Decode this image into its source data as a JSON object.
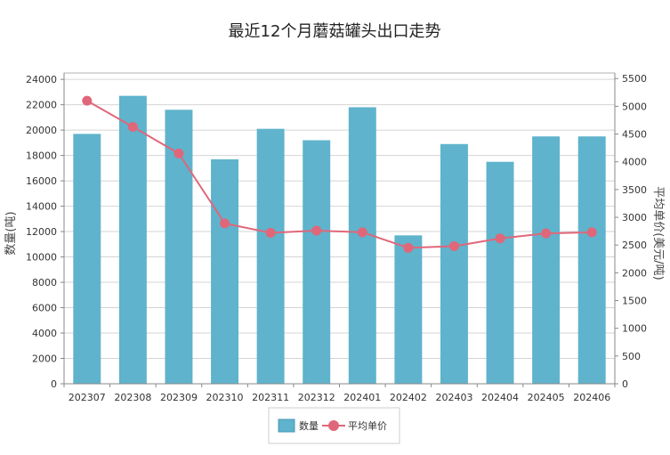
{
  "chart_data": {
    "type": "bar",
    "title": "最近12个月蘑菇罐头出口走势",
    "categories": [
      "202307",
      "202308",
      "202309",
      "202310",
      "202311",
      "202312",
      "202401",
      "202402",
      "202403",
      "202404",
      "202405",
      "202406"
    ],
    "ylabel": "数量(吨)",
    "y2label": "平均单价(美元/吨)",
    "ylim": [
      0,
      24500
    ],
    "y2lim": [
      0,
      5600
    ],
    "yticks": [
      0,
      2000,
      4000,
      6000,
      8000,
      10000,
      12000,
      14000,
      16000,
      18000,
      20000,
      22000,
      24000
    ],
    "y2ticks": [
      0,
      500,
      1000,
      1500,
      2000,
      2500,
      3000,
      3500,
      4000,
      4500,
      5000,
      5500
    ],
    "grid": true,
    "legend_position": "bottom",
    "series": [
      {
        "name": "数量",
        "type": "bar",
        "axis": "left",
        "color": "#5fb3cc",
        "values": [
          19700,
          22700,
          21600,
          17700,
          20100,
          19200,
          21800,
          11700,
          18900,
          17500,
          19500,
          19500
        ]
      },
      {
        "name": "平均单价",
        "type": "line",
        "axis": "right",
        "color": "#e0677a",
        "values": [
          5100,
          4630,
          4150,
          2890,
          2720,
          2760,
          2730,
          2450,
          2480,
          2620,
          2710,
          2730
        ]
      }
    ]
  }
}
